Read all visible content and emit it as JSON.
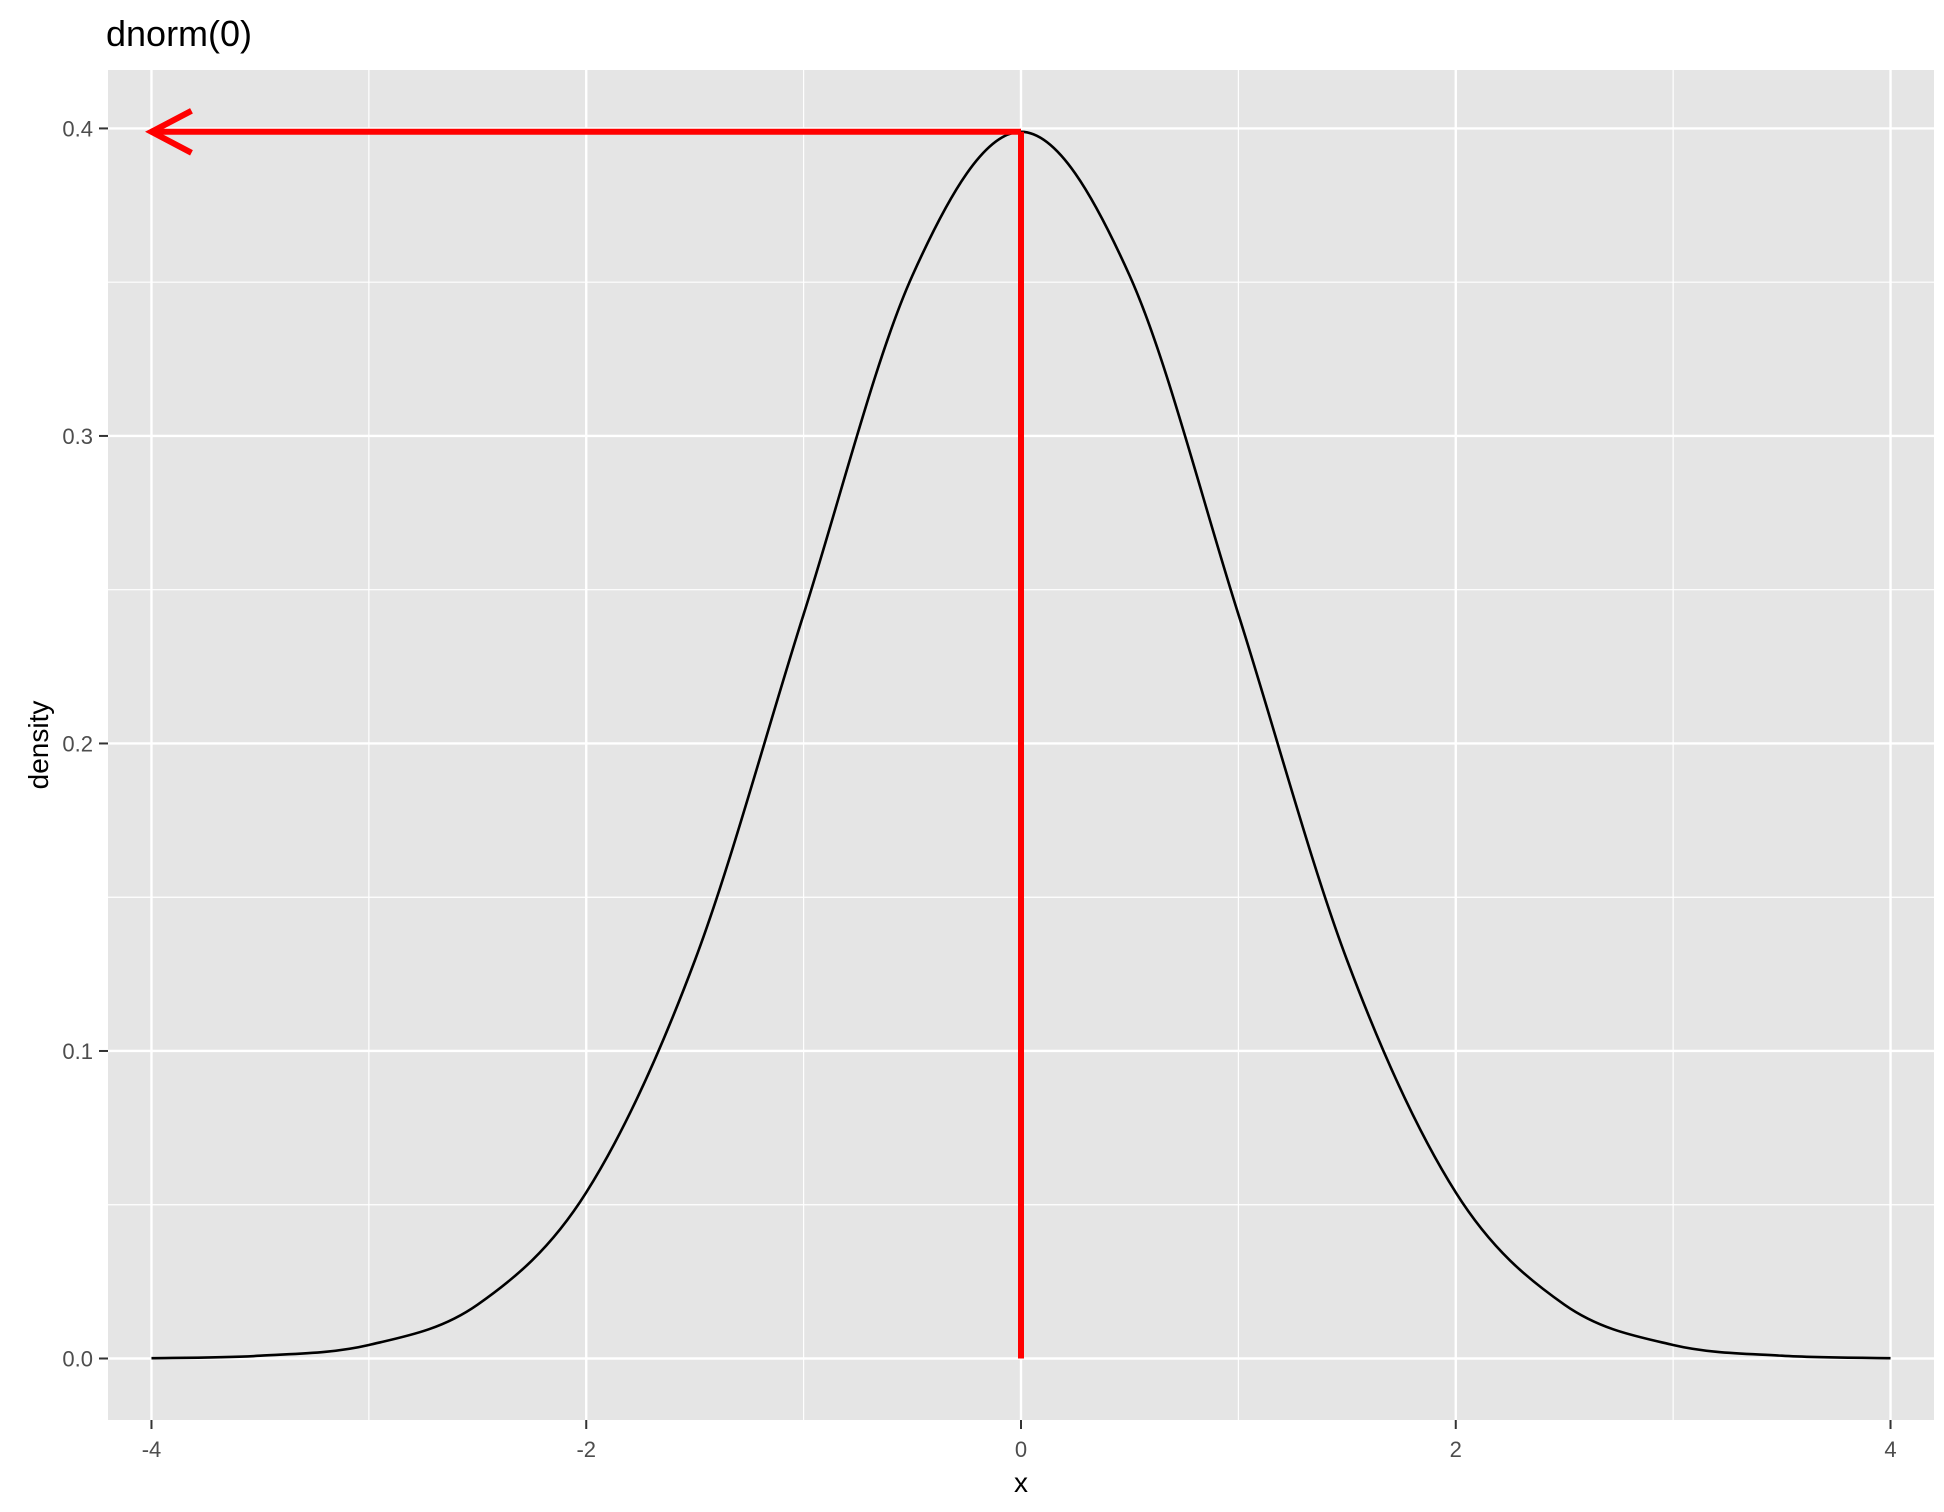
{
  "chart_data": {
    "type": "line",
    "title": "dnorm(0)",
    "xlabel": "x",
    "ylabel": "density",
    "xlim": [
      -4.2,
      4.2
    ],
    "ylim": [
      -0.02,
      0.419
    ],
    "x_ticks": [
      -4,
      -2,
      0,
      2,
      4
    ],
    "x_tick_labels": [
      "-4",
      "-2",
      "0",
      "2",
      "4"
    ],
    "y_ticks": [
      0.0,
      0.1,
      0.2,
      0.3,
      0.4
    ],
    "y_tick_labels": [
      "0.0",
      "0.1",
      "0.2",
      "0.3",
      "0.4"
    ],
    "grid": true,
    "legend": "none",
    "series": [
      {
        "function": "standard normal density",
        "color": "#000000",
        "x": [
          -4,
          -3.5,
          -3,
          -2.5,
          -2,
          -1.5,
          -1,
          -0.5,
          0,
          0.5,
          1,
          1.5,
          2,
          2.5,
          3,
          3.5,
          4
        ],
        "values": [
          0.0001,
          0.0009,
          0.0044,
          0.0175,
          0.054,
          0.1295,
          0.242,
          0.3521,
          0.3989,
          0.3521,
          0.242,
          0.1295,
          0.054,
          0.0175,
          0.0044,
          0.0009,
          0.0001
        ]
      }
    ],
    "annotations": [
      {
        "type": "segment",
        "color": "#ff0000",
        "from": [
          0,
          0
        ],
        "to": [
          0,
          0.3989
        ]
      },
      {
        "type": "arrow",
        "color": "#ff0000",
        "from": [
          0,
          0.3989
        ],
        "to": [
          -4,
          0.3989
        ]
      }
    ],
    "colors": {
      "panel_background": "#e5e5e5",
      "grid": "#ffffff",
      "annotation": "#ff0000",
      "curve": "#000000"
    }
  }
}
